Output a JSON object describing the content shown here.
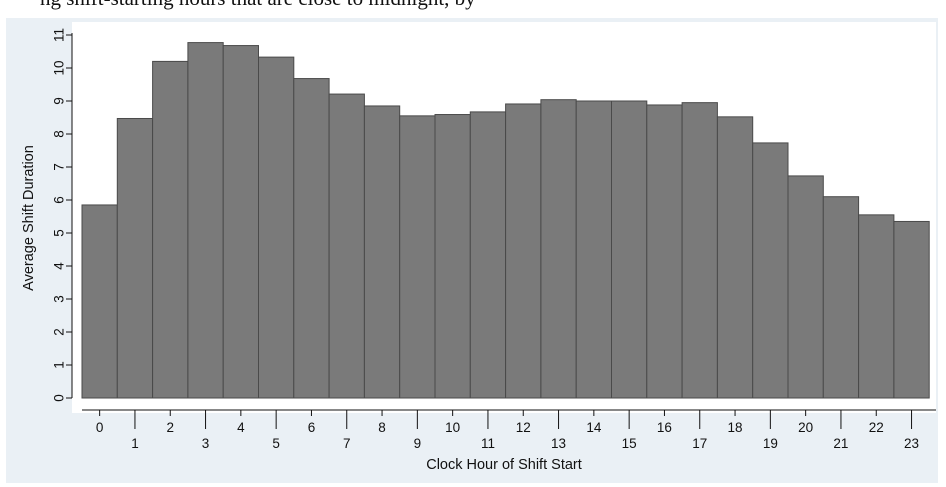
{
  "caption": "ng shift-starting hours that are close to midnight, by",
  "chart_data": {
    "type": "bar",
    "xlabel": "Clock Hour of Shift Start",
    "ylabel": "Average Shift Duration",
    "ylim": [
      0,
      11
    ],
    "yticks": [
      "0",
      "1",
      "2",
      "3",
      "4",
      "5",
      "6",
      "7",
      "8",
      "9",
      "10",
      "11"
    ],
    "categories": [
      "0",
      "1",
      "2",
      "3",
      "4",
      "5",
      "6",
      "7",
      "8",
      "9",
      "10",
      "11",
      "12",
      "13",
      "14",
      "15",
      "16",
      "17",
      "18",
      "19",
      "20",
      "21",
      "22",
      "23"
    ],
    "values": [
      5.85,
      8.47,
      10.2,
      10.77,
      10.68,
      10.33,
      9.68,
      9.21,
      8.85,
      8.55,
      8.59,
      8.67,
      8.91,
      9.04,
      9.0,
      9.0,
      8.88,
      8.95,
      8.52,
      7.73,
      6.73,
      6.1,
      5.55,
      5.35
    ],
    "grid": false,
    "colors": {
      "bar_fill": "#7a7a7a",
      "bar_stroke": "#4a4a4a",
      "panel_bg": "#eaf0f5",
      "plot_bg": "#ffffff"
    }
  }
}
